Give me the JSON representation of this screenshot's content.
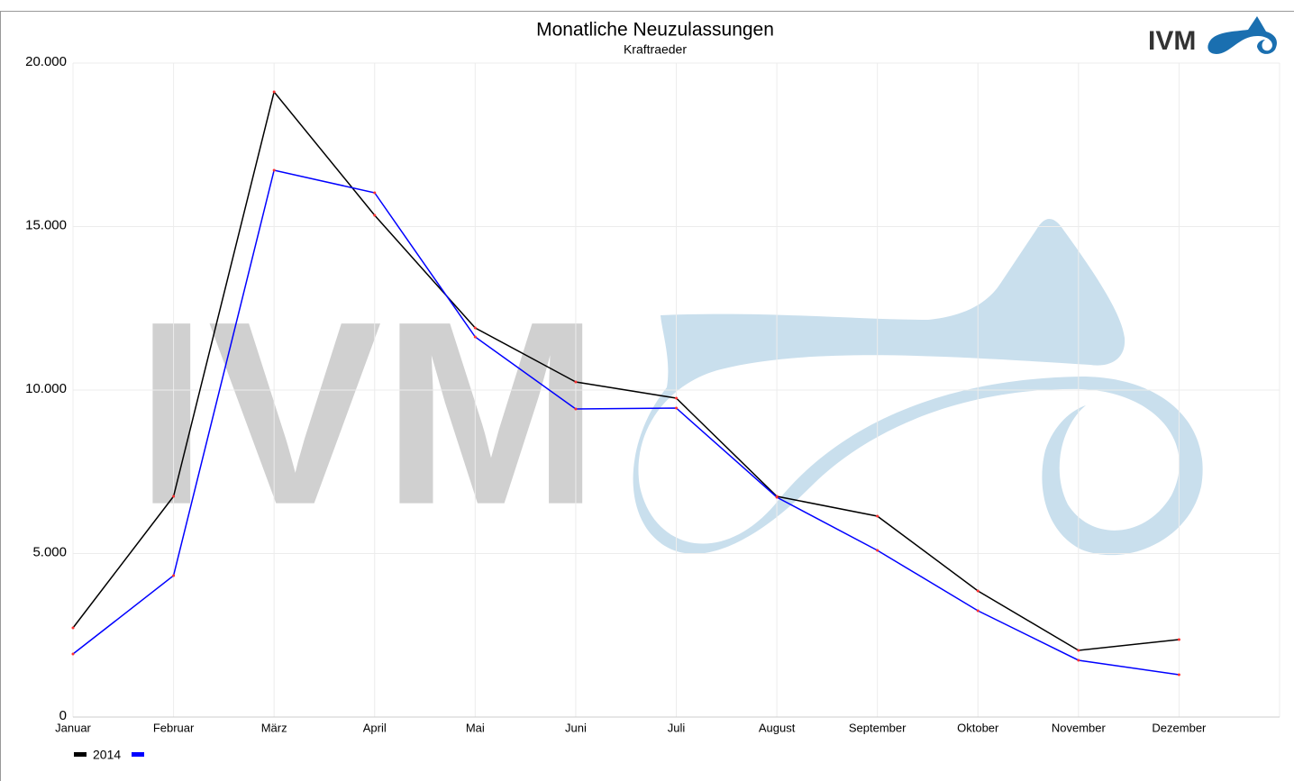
{
  "logo": "IVM",
  "chart_data": {
    "type": "line",
    "title": "Monatliche Neuzulassungen",
    "subtitle": "Kraftraeder",
    "categories": [
      "Januar",
      "Februar",
      "März",
      "April",
      "Mai",
      "Juni",
      "Juli",
      "August",
      "September",
      "Oktober",
      "November",
      "Dezember"
    ],
    "series": [
      {
        "name": "2014",
        "color": "#000000",
        "values": [
          2727,
          6749,
          19118,
          15344,
          11901,
          10248,
          9752,
          6749,
          6143,
          3857,
          2039,
          2369
        ]
      },
      {
        "color": "#0000ff",
        "values": [
          1928,
          4325,
          16722,
          16033,
          11625,
          9421,
          9449,
          6722,
          5096,
          3251,
          1736,
          1295
        ]
      }
    ],
    "marker_color": "#ff3030",
    "ylim": [
      0,
      20000
    ],
    "yticks": [
      0,
      {
        "value": 5000,
        "label": "5.000"
      },
      {
        "value": 10000,
        "label": "10.000"
      },
      {
        "value": 15000,
        "label": "15.000"
      },
      {
        "value": 20000,
        "label": "20.000"
      }
    ],
    "grid": true
  }
}
